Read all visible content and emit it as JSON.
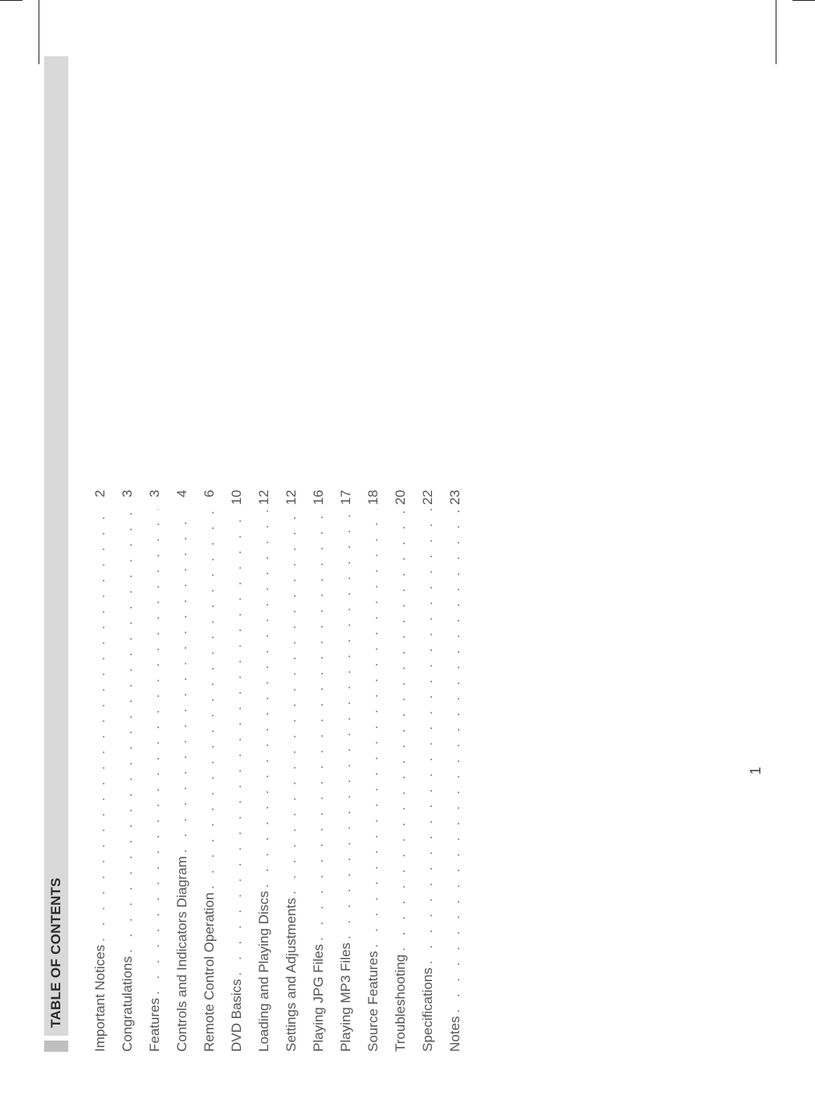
{
  "heading": "TABLE OF CONTENTS",
  "page_number": "1",
  "dot_fill": ". . . . . . . . . . . . . . . . . . . . . . . . . . . . . . . . . . . . . . . . . . . . . . . . . . . . . . . . . . . . . . . . . . . . . . . . . . . . . . . . . . . . . . . . . . . .",
  "toc": [
    {
      "label": "Important Notices",
      "page": "2"
    },
    {
      "label": "Congratulations",
      "page": "3"
    },
    {
      "label": "Features",
      "page": "3"
    },
    {
      "label": "Controls and Indicators Diagram",
      "page": "4"
    },
    {
      "label": "Remote Control Operation",
      "page": "6"
    },
    {
      "label": "DVD Basics",
      "page": "10"
    },
    {
      "label": "Loading and Playing Discs",
      "page": "12"
    },
    {
      "label": "Settings and Adjustments",
      "page": "12"
    },
    {
      "label": "Playing JPG Files",
      "page": "16"
    },
    {
      "label": "Playing MP3 Files",
      "page": "17"
    },
    {
      "label": "Source Features",
      "page": "18"
    },
    {
      "label": "Troubleshooting",
      "page": "20"
    },
    {
      "label": "Specifications",
      "page": "22"
    },
    {
      "label": "Notes",
      "page": "23"
    }
  ],
  "colors": {
    "text": "#4a4a4a",
    "heading_text": "#2b2b2b",
    "heading_bg": "#d9d9d9",
    "heading_accent": "#bfbfbf",
    "background": "#ffffff"
  },
  "fonts": {
    "body_size_pt": 13,
    "heading_size_pt": 13,
    "heading_weight": "bold",
    "family": "Arial"
  }
}
